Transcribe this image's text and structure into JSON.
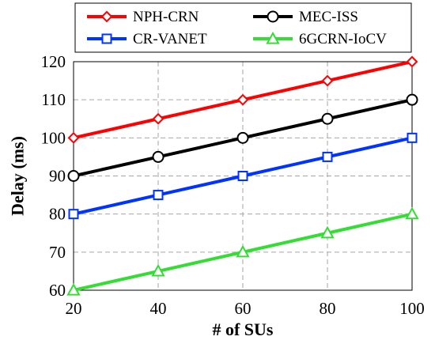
{
  "chart_data": {
    "type": "line",
    "title": "",
    "xlabel": "# of SUs",
    "ylabel": "Delay (ms)",
    "x": [
      20,
      40,
      60,
      80,
      100
    ],
    "xlim": [
      20,
      100
    ],
    "ylim": [
      60,
      120
    ],
    "xticks": [
      "20",
      "40",
      "60",
      "80",
      "100"
    ],
    "yticks": [
      "60",
      "70",
      "80",
      "90",
      "100",
      "110",
      "120"
    ],
    "grid": true,
    "legend_position": "top",
    "series": [
      {
        "name": "NPH-CRN",
        "values": [
          100,
          105,
          110,
          115,
          120
        ],
        "color": "#ff0000",
        "marker": "diamond"
      },
      {
        "name": "MEC-ISS",
        "values": [
          90,
          95,
          100,
          105,
          110
        ],
        "color": "#000000",
        "marker": "circle"
      },
      {
        "name": "CR-VANET",
        "values": [
          80,
          85,
          90,
          95,
          100
        ],
        "color": "#0033ff",
        "marker": "square"
      },
      {
        "name": "6GCRN-IoCV",
        "values": [
          60,
          65,
          70,
          75,
          80
        ],
        "color": "#33dd33",
        "marker": "triangle"
      }
    ]
  }
}
